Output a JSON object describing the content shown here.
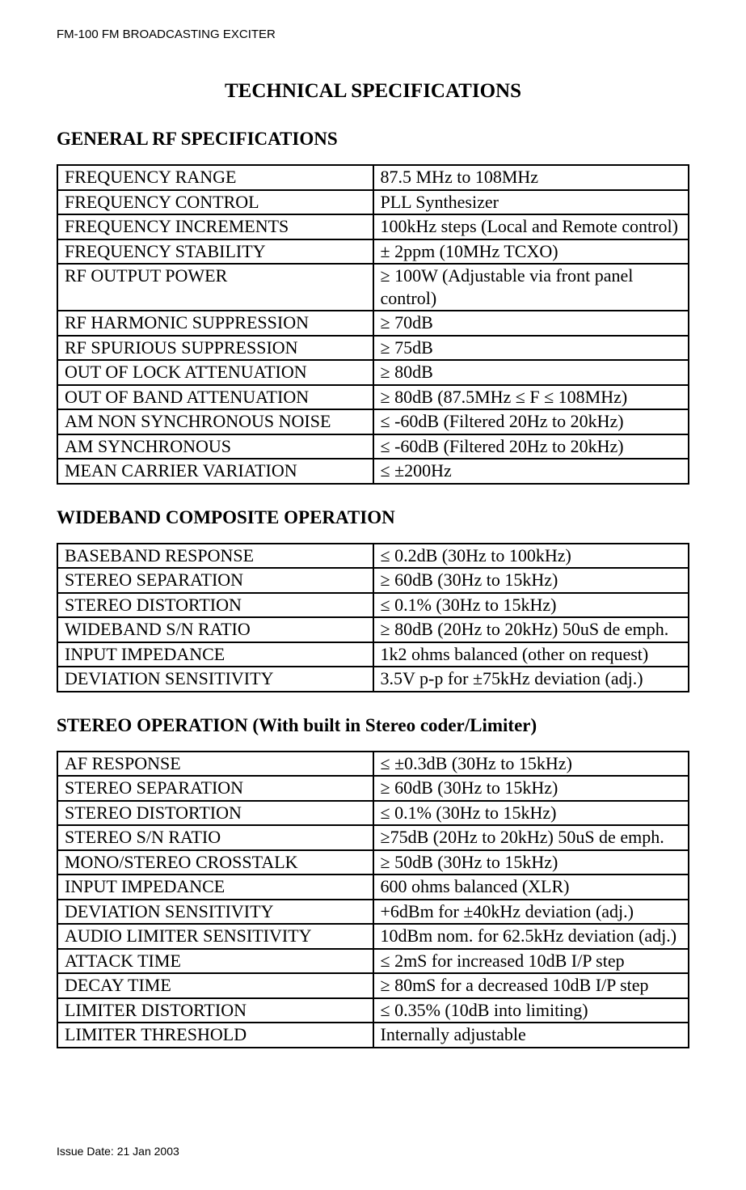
{
  "header": "FM-100 FM BROADCASTING EXCITER",
  "footer": "Issue Date: 21 Jan 2003",
  "title": "TECHNICAL SPECIFICATIONS",
  "sections": [
    {
      "heading": "GENERAL RF SPECIFICATIONS",
      "rows": [
        [
          "FREQUENCY RANGE",
          "87.5 MHz to 108MHz"
        ],
        [
          "FREQUENCY CONTROL",
          "PLL Synthesizer"
        ],
        [
          "FREQUENCY INCREMENTS",
          "100kHz steps (Local and Remote control)"
        ],
        [
          "FREQUENCY STABILITY",
          "± 2ppm (10MHz TCXO)"
        ],
        [
          "RF OUTPUT POWER",
          "≥ 100W (Adjustable via front panel control)"
        ],
        [
          "RF HARMONIC SUPPRESSION",
          "≥ 70dB"
        ],
        [
          "RF SPURIOUS SUPPRESSION",
          "≥ 75dB"
        ],
        [
          "OUT OF LOCK ATTENUATION",
          "≥ 80dB"
        ],
        [
          "OUT OF BAND ATTENUATION",
          "≥ 80dB (87.5MHz ≤ F ≤ 108MHz)"
        ],
        [
          "AM NON SYNCHRONOUS NOISE",
          "≤ -60dB (Filtered 20Hz to 20kHz)"
        ],
        [
          "AM SYNCHRONOUS",
          "≤ -60dB (Filtered 20Hz to 20kHz)"
        ],
        [
          "MEAN CARRIER VARIATION",
          "≤  ±200Hz"
        ]
      ]
    },
    {
      "heading": "WIDEBAND COMPOSITE OPERATION",
      "rows": [
        [
          "BASEBAND RESPONSE",
          "≤ 0.2dB (30Hz to 100kHz)"
        ],
        [
          "STEREO SEPARATION",
          "≥ 60dB (30Hz to 15kHz)"
        ],
        [
          "STEREO DISTORTION",
          "≤ 0.1% (30Hz to 15kHz)"
        ],
        [
          "WIDEBAND S/N RATIO",
          "≥ 80dB (20Hz to 20kHz) 50uS de emph."
        ],
        [
          "INPUT IMPEDANCE",
          "1k2 ohms balanced (other on request)"
        ],
        [
          "DEVIATION SENSITIVITY",
          "3.5V p-p for ±75kHz deviation (adj.)"
        ]
      ]
    },
    {
      "heading": "STEREO OPERATION (With built in Stereo coder/Limiter)",
      "rows": [
        [
          "AF RESPONSE",
          "≤  ±0.3dB (30Hz to 15kHz)"
        ],
        [
          "STEREO SEPARATION",
          "≥ 60dB (30Hz to 15kHz)"
        ],
        [
          "STEREO DISTORTION",
          "≤ 0.1% (30Hz to 15kHz)"
        ],
        [
          "STEREO S/N RATIO",
          "≥75dB (20Hz to 20kHz) 50uS de emph."
        ],
        [
          "MONO/STEREO CROSSTALK",
          "≥ 50dB (30Hz to 15kHz)"
        ],
        [
          "INPUT IMPEDANCE",
          "600 ohms balanced (XLR)"
        ],
        [
          "DEVIATION SENSITIVITY",
          "+6dBm for ±40kHz deviation (adj.)"
        ],
        [
          "AUDIO LIMITER SENSITIVITY",
          "10dBm nom. for 62.5kHz deviation (adj.)"
        ],
        [
          "ATTACK TIME",
          "≤ 2mS for increased 10dB I/P step"
        ],
        [
          "DECAY TIME",
          "≥ 80mS for a decreased 10dB I/P step"
        ],
        [
          "LIMITER DISTORTION",
          "≤ 0.35% (10dB into limiting)"
        ],
        [
          "LIMITER THRESHOLD",
          "Internally adjustable"
        ]
      ]
    }
  ]
}
